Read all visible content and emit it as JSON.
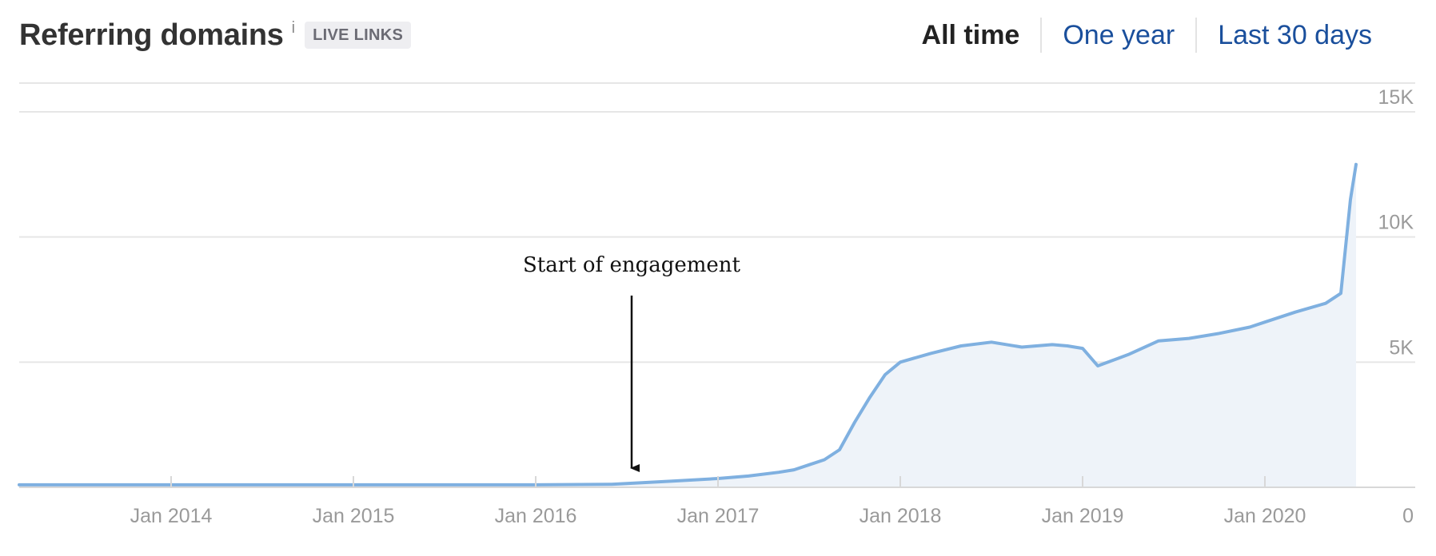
{
  "header": {
    "title": "Referring domains",
    "info_glyph": "i",
    "badge": "LIVE LINKS"
  },
  "range_tabs": [
    {
      "label": "All time",
      "active": true
    },
    {
      "label": "One year",
      "active": false
    },
    {
      "label": "Last 30 days",
      "active": false
    }
  ],
  "colors": {
    "line": "#7fb0e0",
    "area": "#eef3f9",
    "link": "#1a4f9c",
    "grid": "#e6e6e6"
  },
  "chart_data": {
    "type": "area",
    "title": "Referring domains",
    "xlabel": "",
    "ylabel": "",
    "x_tick_labels": [
      "Jan 2014",
      "Jan 2015",
      "Jan 2016",
      "Jan 2017",
      "Jan 2018",
      "Jan 2019",
      "Jan 2020"
    ],
    "y_tick_labels": [
      "0",
      "5K",
      "10K",
      "15K"
    ],
    "y_ticks": [
      0,
      5000,
      10000,
      15000
    ],
    "ylim": [
      0,
      15000
    ],
    "xlim": [
      "2013-03",
      "2020-07"
    ],
    "grid": true,
    "y_axis_side": "right",
    "annotation": {
      "text": "Start of engagement",
      "date": "2016-06"
    },
    "series": [
      {
        "x": [
          "2013-03",
          "2014-01",
          "2015-01",
          "2016-01",
          "2016-06",
          "2016-10",
          "2017-01",
          "2017-03",
          "2017-05",
          "2017-06",
          "2017-07",
          "2017-08",
          "2017-09",
          "2017-10",
          "2017-11",
          "2017-12",
          "2018-01",
          "2018-03",
          "2018-05",
          "2018-07",
          "2018-09",
          "2018-11",
          "2018-12",
          "2019-01",
          "2019-02",
          "2019-04",
          "2019-06",
          "2019-08",
          "2019-10",
          "2019-12",
          "2020-01",
          "2020-03",
          "2020-05",
          "2020-06",
          "2020-06-20",
          "2020-07"
        ],
        "values": [
          100,
          100,
          100,
          100,
          120,
          250,
          350,
          450,
          600,
          700,
          900,
          1100,
          1500,
          2600,
          3600,
          4500,
          5000,
          5350,
          5650,
          5800,
          5600,
          5700,
          5650,
          5550,
          4850,
          5300,
          5850,
          5950,
          6150,
          6400,
          6600,
          7000,
          7350,
          7750,
          11500,
          12900
        ]
      }
    ]
  }
}
